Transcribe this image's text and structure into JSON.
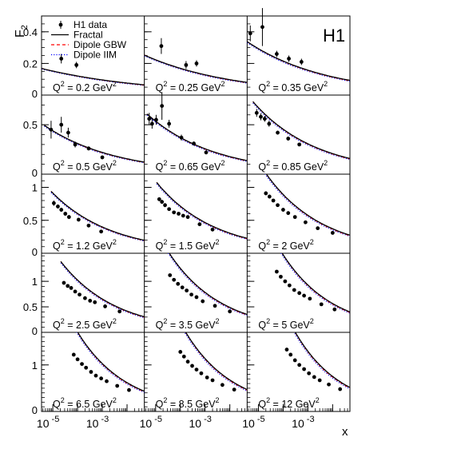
{
  "chart_data": {
    "type": "scatter",
    "brand": "H1",
    "ylabel_base": "F",
    "ylabel_sub": "2",
    "xlabel": "x",
    "x_scale": "log",
    "x_range": [
      3.5e-06,
      0.05
    ],
    "x_tick_labels": [
      {
        "value": 1e-05,
        "base": "10",
        "exp": "-5"
      },
      {
        "value": 0.001,
        "base": "10",
        "exp": "-3"
      }
    ],
    "legend": {
      "placement": "top-left",
      "entries": [
        {
          "key": "data",
          "label": "H1 data",
          "style": "marker",
          "color": "#000000"
        },
        {
          "key": "fractal",
          "label": "Fractal",
          "style": "solid",
          "color": "#000000"
        },
        {
          "key": "gbw",
          "label": "Dipole GBW",
          "style": "dashed",
          "color": "#ff0000"
        },
        {
          "key": "iim",
          "label": "Dipole IIM",
          "style": "dotted",
          "color": "#0000ff"
        }
      ]
    },
    "rows": [
      {
        "ylim": [
          0,
          0.5
        ],
        "yticks": [
          {
            "v": 0,
            "t": "0"
          },
          {
            "v": 0.2,
            "t": "0.2"
          },
          {
            "v": 0.4,
            "t": "0.4"
          }
        ]
      },
      {
        "ylim": [
          0,
          0.8
        ],
        "yticks": [
          {
            "v": 0,
            "t": "0"
          },
          {
            "v": 0.5,
            "t": "0.5"
          }
        ]
      },
      {
        "ylim": [
          0,
          1.2
        ],
        "yticks": [
          {
            "v": 0,
            "t": "0"
          },
          {
            "v": 0.5,
            "t": "0.5"
          },
          {
            "v": 1,
            "t": "1"
          }
        ]
      },
      {
        "ylim": [
          0,
          1.55
        ],
        "yticks": [
          {
            "v": 0,
            "t": "0"
          },
          {
            "v": 0.5,
            "t": "0.5"
          },
          {
            "v": 1,
            "t": "1"
          }
        ]
      },
      {
        "ylim": [
          0,
          1.7
        ],
        "yticks": [
          {
            "v": 0,
            "t": "0"
          },
          {
            "v": 1,
            "t": "1"
          }
        ]
      }
    ],
    "panels": [
      {
        "q2": "0.2",
        "q2_value": 0.2,
        "unit": "GeV",
        "model": {
          "a": 0.048,
          "lam": 0.1,
          "xmin": 3.5e-06,
          "xmax": 0.05
        },
        "points": [
          {
            "x": 2.2e-05,
            "y": 0.23,
            "err": 0.03
          },
          {
            "x": 9e-05,
            "y": 0.19,
            "err": 0.02
          }
        ]
      },
      {
        "q2": "0.25",
        "q2_value": 0.25,
        "unit": "GeV",
        "model": {
          "a": 0.056,
          "lam": 0.12,
          "xmin": 3.5e-06,
          "xmax": 0.05
        },
        "points": [
          {
            "x": 1.7e-05,
            "y": 0.31,
            "err": 0.05
          },
          {
            "x": 0.00017,
            "y": 0.19,
            "err": 0.025
          },
          {
            "x": 0.00045,
            "y": 0.2,
            "err": 0.02
          }
        ]
      },
      {
        "q2": "0.35",
        "q2_value": 0.35,
        "unit": "GeV",
        "model": {
          "a": 0.062,
          "lam": 0.135,
          "xmin": 3.5e-06,
          "xmax": 0.05
        },
        "points": [
          {
            "x": 4.7e-06,
            "y": 0.39,
            "err": 0.05
          },
          {
            "x": 1.45e-05,
            "y": 0.43,
            "err": 0.12
          },
          {
            "x": 5.5e-05,
            "y": 0.26,
            "err": 0.02
          },
          {
            "x": 0.00017,
            "y": 0.23,
            "err": 0.02
          },
          {
            "x": 0.00055,
            "y": 0.21,
            "err": 0.02
          }
        ]
      },
      {
        "q2": "0.5",
        "q2_value": 0.5,
        "unit": "GeV",
        "model": {
          "a": 0.078,
          "lam": 0.15,
          "xmin": 4.5e-06,
          "xmax": 0.05
        },
        "points": [
          {
            "x": 8.5e-06,
            "y": 0.45,
            "err": 0.09
          },
          {
            "x": 2.2e-05,
            "y": 0.5,
            "err": 0.08
          },
          {
            "x": 4.2e-05,
            "y": 0.42,
            "err": 0.05
          },
          {
            "x": 8e-05,
            "y": 0.3,
            "err": 0.03
          },
          {
            "x": 0.00028,
            "y": 0.26,
            "err": 0.02
          },
          {
            "x": 0.001,
            "y": 0.17,
            "err": 0.02
          }
        ]
      },
      {
        "q2": "0.65",
        "q2_value": 0.65,
        "unit": "GeV",
        "model": {
          "a": 0.085,
          "lam": 0.16,
          "xmin": 4.5e-06,
          "xmax": 0.05
        },
        "points": [
          {
            "x": 5.5e-06,
            "y": 0.56,
            "err": 0.06
          },
          {
            "x": 7.2e-06,
            "y": 0.51,
            "err": 0.05
          },
          {
            "x": 1.05e-05,
            "y": 0.55,
            "err": 0.05
          },
          {
            "x": 1.8e-05,
            "y": 0.69,
            "err": 0.14
          },
          {
            "x": 3.5e-05,
            "y": 0.51,
            "err": 0.04
          },
          {
            "x": 0.00011,
            "y": 0.37,
            "err": 0.03
          },
          {
            "x": 0.00035,
            "y": 0.31,
            "err": 0.02
          },
          {
            "x": 0.0011,
            "y": 0.22,
            "err": 0.02
          }
        ]
      },
      {
        "q2": "0.85",
        "q2_value": 0.85,
        "unit": "GeV",
        "model": {
          "a": 0.095,
          "lam": 0.17,
          "xmin": 6e-06,
          "xmax": 0.05
        },
        "points": [
          {
            "x": 8.5e-06,
            "y": 0.62,
            "err": 0.04
          },
          {
            "x": 1.25e-05,
            "y": 0.58,
            "err": 0.035
          },
          {
            "x": 1.8e-05,
            "y": 0.56,
            "err": 0.03
          },
          {
            "x": 2.7e-05,
            "y": 0.51,
            "err": 0.03
          },
          {
            "x": 6e-05,
            "y": 0.42,
            "err": 0.02
          },
          {
            "x": 0.00016,
            "y": 0.36,
            "err": 0.02
          },
          {
            "x": 0.00045,
            "y": 0.3,
            "err": 0.015
          }
        ]
      },
      {
        "q2": "1.2",
        "q2_value": 1.2,
        "unit": "GeV",
        "model": {
          "a": 0.115,
          "lam": 0.18,
          "xmin": 8.5e-06,
          "xmax": 0.05
        },
        "points": [
          {
            "x": 1.1e-05,
            "y": 0.76,
            "err": 0.04
          },
          {
            "x": 1.6e-05,
            "y": 0.71,
            "err": 0.03
          },
          {
            "x": 2.2e-05,
            "y": 0.66,
            "err": 0.03
          },
          {
            "x": 3.2e-05,
            "y": 0.6,
            "err": 0.03
          },
          {
            "x": 4.5e-05,
            "y": 0.55,
            "err": 0.03
          },
          {
            "x": 0.00011,
            "y": 0.51,
            "err": 0.02
          },
          {
            "x": 0.00028,
            "y": 0.42,
            "err": 0.02
          },
          {
            "x": 0.0009,
            "y": 0.33,
            "err": 0.02
          }
        ]
      },
      {
        "q2": "1.5",
        "q2_value": 1.5,
        "unit": "GeV",
        "model": {
          "a": 0.13,
          "lam": 0.185,
          "xmin": 1.1e-05,
          "xmax": 0.05
        },
        "points": [
          {
            "x": 1.4e-05,
            "y": 0.82,
            "err": 0.03
          },
          {
            "x": 1.8e-05,
            "y": 0.78,
            "err": 0.03
          },
          {
            "x": 2.4e-05,
            "y": 0.73,
            "err": 0.03
          },
          {
            "x": 3.5e-05,
            "y": 0.67,
            "err": 0.02
          },
          {
            "x": 5.5e-05,
            "y": 0.62,
            "err": 0.02
          },
          {
            "x": 8.5e-05,
            "y": 0.6,
            "err": 0.02
          },
          {
            "x": 0.00013,
            "y": 0.57,
            "err": 0.02
          },
          {
            "x": 0.0002,
            "y": 0.55,
            "err": 0.02
          },
          {
            "x": 0.0006,
            "y": 0.44,
            "err": 0.02
          },
          {
            "x": 0.002,
            "y": 0.36,
            "err": 0.02
          }
        ]
      },
      {
        "q2": "2",
        "q2_value": 2,
        "unit": "GeV",
        "model": {
          "a": 0.155,
          "lam": 0.19,
          "xmin": 1.6e-05,
          "xmax": 0.05
        },
        "points": [
          {
            "x": 2e-05,
            "y": 0.91,
            "err": 0.03
          },
          {
            "x": 2.8e-05,
            "y": 0.86,
            "err": 0.03
          },
          {
            "x": 4e-05,
            "y": 0.8,
            "err": 0.02
          },
          {
            "x": 6e-05,
            "y": 0.73,
            "err": 0.02
          },
          {
            "x": 0.0001,
            "y": 0.66,
            "err": 0.02
          },
          {
            "x": 0.00016,
            "y": 0.61,
            "err": 0.02
          },
          {
            "x": 0.0003,
            "y": 0.55,
            "err": 0.02
          },
          {
            "x": 0.0008,
            "y": 0.47,
            "err": 0.02
          },
          {
            "x": 0.0025,
            "y": 0.38,
            "err": 0.02
          },
          {
            "x": 0.01,
            "y": 0.31,
            "err": 0.02
          }
        ]
      },
      {
        "q2": "2.5",
        "q2_value": 2.5,
        "unit": "GeV",
        "model": {
          "a": 0.17,
          "lam": 0.195,
          "xmin": 2.1e-05,
          "xmax": 0.05
        },
        "points": [
          {
            "x": 2.8e-05,
            "y": 0.97,
            "err": 0.03
          },
          {
            "x": 4e-05,
            "y": 0.91,
            "err": 0.03
          },
          {
            "x": 5.5e-05,
            "y": 0.87,
            "err": 0.02
          },
          {
            "x": 8e-05,
            "y": 0.8,
            "err": 0.02
          },
          {
            "x": 0.00012,
            "y": 0.74,
            "err": 0.02
          },
          {
            "x": 0.0002,
            "y": 0.67,
            "err": 0.02
          },
          {
            "x": 0.00032,
            "y": 0.62,
            "err": 0.02
          },
          {
            "x": 0.0005,
            "y": 0.59,
            "err": 0.02
          },
          {
            "x": 0.0013,
            "y": 0.51,
            "err": 0.02
          },
          {
            "x": 0.005,
            "y": 0.41,
            "err": 0.02
          }
        ]
      },
      {
        "q2": "3.5",
        "q2_value": 3.5,
        "unit": "GeV",
        "model": {
          "a": 0.19,
          "lam": 0.205,
          "xmin": 2.8e-05,
          "xmax": 0.05
        },
        "points": [
          {
            "x": 3.8e-05,
            "y": 1.12,
            "err": 0.03
          },
          {
            "x": 5.5e-05,
            "y": 1.03,
            "err": 0.03
          },
          {
            "x": 8e-05,
            "y": 0.95,
            "err": 0.02
          },
          {
            "x": 0.00012,
            "y": 0.88,
            "err": 0.02
          },
          {
            "x": 0.00018,
            "y": 0.82,
            "err": 0.02
          },
          {
            "x": 0.00028,
            "y": 0.74,
            "err": 0.02
          },
          {
            "x": 0.00045,
            "y": 0.69,
            "err": 0.02
          },
          {
            "x": 0.0008,
            "y": 0.61,
            "err": 0.02
          },
          {
            "x": 0.0025,
            "y": 0.52,
            "err": 0.02
          },
          {
            "x": 0.01,
            "y": 0.41,
            "err": 0.02
          }
        ]
      },
      {
        "q2": "5",
        "q2_value": 5,
        "unit": "GeV",
        "model": {
          "a": 0.21,
          "lam": 0.215,
          "xmin": 4e-05,
          "xmax": 0.05
        },
        "points": [
          {
            "x": 5.5e-05,
            "y": 1.19,
            "err": 0.03
          },
          {
            "x": 8e-05,
            "y": 1.09,
            "err": 0.03
          },
          {
            "x": 0.00012,
            "y": 1.0,
            "err": 0.02
          },
          {
            "x": 0.00018,
            "y": 0.92,
            "err": 0.02
          },
          {
            "x": 0.00028,
            "y": 0.83,
            "err": 0.02
          },
          {
            "x": 0.00045,
            "y": 0.77,
            "err": 0.02
          },
          {
            "x": 0.0007,
            "y": 0.72,
            "err": 0.02
          },
          {
            "x": 0.0012,
            "y": 0.66,
            "err": 0.02
          },
          {
            "x": 0.0035,
            "y": 0.55,
            "err": 0.02
          },
          {
            "x": 0.012,
            "y": 0.45,
            "err": 0.02
          }
        ]
      },
      {
        "q2": "6.5",
        "q2_value": 6.5,
        "unit": "GeV",
        "model": {
          "a": 0.225,
          "lam": 0.22,
          "xmin": 5e-05,
          "xmax": 0.05
        },
        "points": [
          {
            "x": 7e-05,
            "y": 1.22,
            "err": 0.03
          },
          {
            "x": 0.0001,
            "y": 1.12,
            "err": 0.03
          },
          {
            "x": 0.00015,
            "y": 1.02,
            "err": 0.02
          },
          {
            "x": 0.00022,
            "y": 0.94,
            "err": 0.02
          },
          {
            "x": 0.00035,
            "y": 0.85,
            "err": 0.02
          },
          {
            "x": 0.00055,
            "y": 0.77,
            "err": 0.02
          },
          {
            "x": 0.0009,
            "y": 0.71,
            "err": 0.02
          },
          {
            "x": 0.0015,
            "y": 0.65,
            "err": 0.02
          },
          {
            "x": 0.004,
            "y": 0.55,
            "err": 0.02
          },
          {
            "x": 0.012,
            "y": 0.46,
            "err": 0.02
          }
        ]
      },
      {
        "q2": "8.5",
        "q2_value": 8.5,
        "unit": "GeV",
        "model": {
          "a": 0.24,
          "lam": 0.225,
          "xmin": 7e-05,
          "xmax": 0.05
        },
        "points": [
          {
            "x": 0.0001,
            "y": 1.28,
            "err": 0.03
          },
          {
            "x": 0.00014,
            "y": 1.18,
            "err": 0.03
          },
          {
            "x": 0.0002,
            "y": 1.07,
            "err": 0.02
          },
          {
            "x": 0.0003,
            "y": 0.98,
            "err": 0.02
          },
          {
            "x": 0.00045,
            "y": 0.9,
            "err": 0.02
          },
          {
            "x": 0.0007,
            "y": 0.82,
            "err": 0.02
          },
          {
            "x": 0.0012,
            "y": 0.73,
            "err": 0.02
          },
          {
            "x": 0.002,
            "y": 0.67,
            "err": 0.02
          },
          {
            "x": 0.005,
            "y": 0.57,
            "err": 0.02
          },
          {
            "x": 0.015,
            "y": 0.47,
            "err": 0.02
          }
        ]
      },
      {
        "q2": "12",
        "q2_value": 12,
        "unit": "GeV",
        "model": {
          "a": 0.255,
          "lam": 0.235,
          "xmin": 0.0001,
          "xmax": 0.05
        },
        "points": [
          {
            "x": 0.00014,
            "y": 1.33,
            "err": 0.03
          },
          {
            "x": 0.0002,
            "y": 1.22,
            "err": 0.03
          },
          {
            "x": 0.0003,
            "y": 1.1,
            "err": 0.02
          },
          {
            "x": 0.00045,
            "y": 1.0,
            "err": 0.02
          },
          {
            "x": 0.0007,
            "y": 0.91,
            "err": 0.02
          },
          {
            "x": 0.0011,
            "y": 0.82,
            "err": 0.02
          },
          {
            "x": 0.0018,
            "y": 0.74,
            "err": 0.02
          },
          {
            "x": 0.003,
            "y": 0.67,
            "err": 0.02
          },
          {
            "x": 0.007,
            "y": 0.58,
            "err": 0.02
          },
          {
            "x": 0.02,
            "y": 0.48,
            "err": 0.02
          }
        ]
      }
    ]
  }
}
